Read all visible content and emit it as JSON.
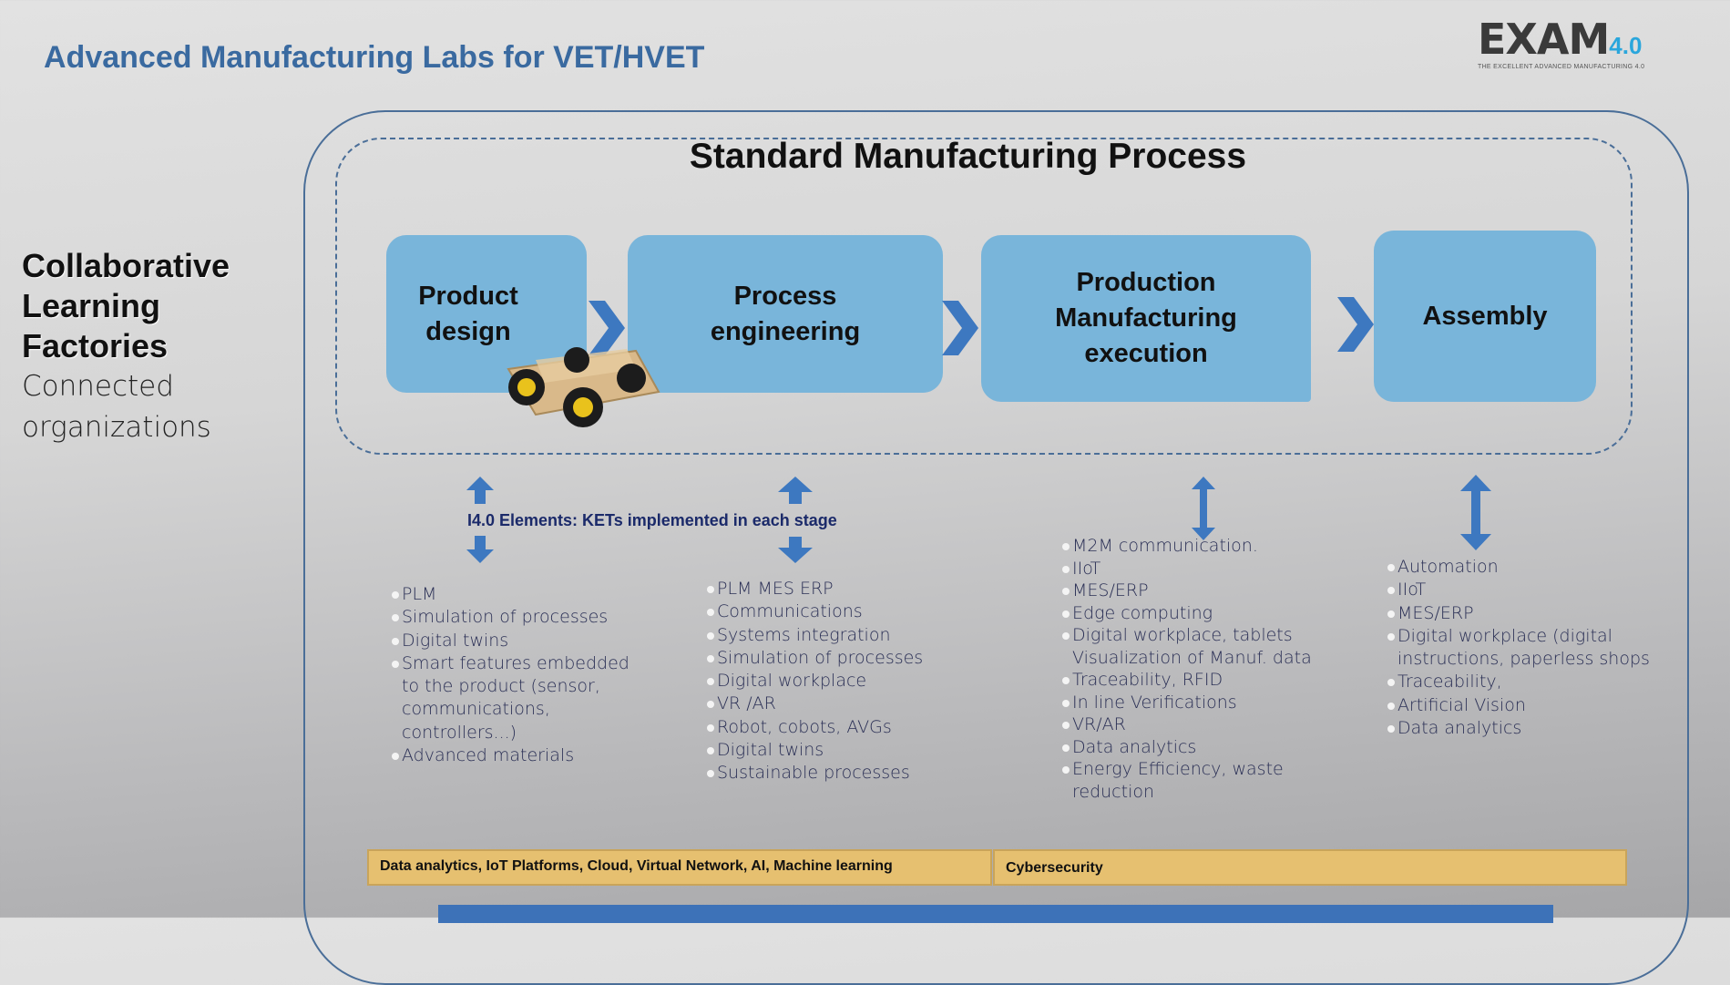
{
  "header": {
    "title": "Advanced Manufacturing Labs for VET/HVET"
  },
  "logo": {
    "main": "EXAM",
    "version": "4.0",
    "tagline": "THE EXCELLENT ADVANCED MANUFACTURING 4.0"
  },
  "sidebar": {
    "bold_lines": [
      "Collaborative",
      "Learning",
      "Factories"
    ],
    "regular_lines": [
      "Connected",
      "organizations"
    ]
  },
  "diagram": {
    "heading": "Standard Manufacturing Process",
    "stages": [
      {
        "label": "Product design"
      },
      {
        "label": "Process engineering"
      },
      {
        "label": "Production Manufacturing execution"
      },
      {
        "label": "Assembly"
      }
    ],
    "kets_label": "I4.0 Elements: KETs implemented in each stage",
    "lists": [
      [
        "PLM",
        "Simulation of processes",
        "Digital twins",
        "Smart features embedded to the product (sensor, communications, controllers...)",
        "Advanced materials"
      ],
      [
        "PLM MES ERP",
        "Communications",
        "Systems integration",
        "Simulation of processes",
        "Digital workplace",
        "VR /AR",
        "Robot, cobots, AVGs",
        "Digital twins",
        "Sustainable processes"
      ],
      [
        "M2M communication.",
        "IIoT",
        "MES/ERP",
        "Edge computing",
        "Digital workplace, tablets Visualization of Manuf. data",
        "Traceability, RFID",
        "In line Verifications",
        "VR/AR",
        "Data analytics",
        "Energy Efficiency, waste reduction"
      ],
      [
        "Automation",
        "IIoT",
        "MES/ERP",
        "Digital workplace (digital instructions, paperless shops",
        "Traceability,",
        "Artificial Vision",
        "Data analytics"
      ]
    ],
    "bottom_bars": [
      "Data analytics, IoT Platforms, Cloud, Virtual Network, AI, Machine learning",
      "Cybersecurity"
    ]
  },
  "colors": {
    "title": "#3a6aa0",
    "stage_box": "#79b5da",
    "arrow": "#3d78c0",
    "bar": "#e6c070"
  }
}
